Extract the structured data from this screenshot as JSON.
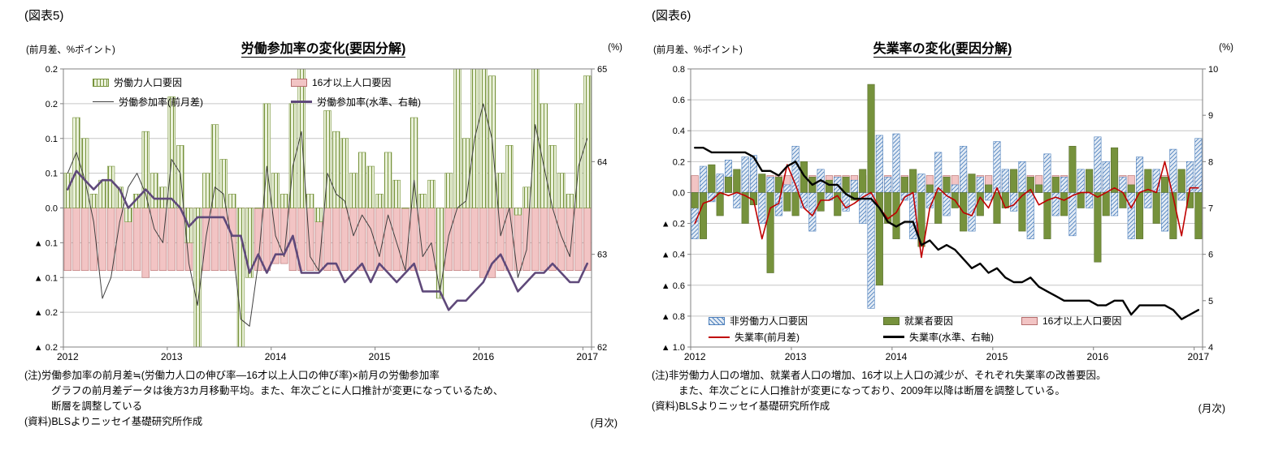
{
  "page": {
    "background": "#ffffff"
  },
  "figures": [
    {
      "fig_label": "(図表5)",
      "title": "労働参加率の変化(要因分解)",
      "unit_left": "(前月差、%ポイント)",
      "unit_right": "(%)",
      "freq_label": "(月次)",
      "legend": [
        {
          "label": "労働力人口要因",
          "swatch": "green-hatch"
        },
        {
          "label": "16才以上人口要因",
          "swatch": "pink"
        },
        {
          "label": "労働参加率(前月差)",
          "swatch": "thin-line"
        },
        {
          "label": "労働参加率(水準、右軸)",
          "swatch": "purple-line"
        }
      ],
      "notes": [
        {
          "text": "(注)労働参加率の前月差≒(労働力人口の伸び率―16才以上人口の伸び率)×前月の労働参加率",
          "indent": false
        },
        {
          "text": "グラフの前月差データは後方3カ月移動平均。また、年次ごとに人口推計が変更になっているため、",
          "indent": true
        },
        {
          "text": "断層を調整している",
          "indent": true
        },
        {
          "text": "(資料)BLSよりニッセイ基礎研究所作成",
          "indent": false
        }
      ]
    },
    {
      "fig_label": "(図表6)",
      "title": "失業率の変化(要因分解)",
      "unit_left": "(前月差、%ポイント)",
      "unit_right": "(%)",
      "freq_label": "(月次)",
      "legend": [
        {
          "label": "非労働力人口要因",
          "swatch": "blue-hatch"
        },
        {
          "label": "就業者要因",
          "swatch": "olive"
        },
        {
          "label": "16才以上人口要因",
          "swatch": "pink"
        },
        {
          "label": "失業率(前月差)",
          "swatch": "red-line"
        },
        {
          "label": "失業率(水準、右軸)",
          "swatch": "black-line"
        }
      ],
      "notes": [
        {
          "text": "(注)非労働力人口の増加、就業者人口の増加、16才以上人口の減少が、それぞれ失業率の改善要因。",
          "indent": false
        },
        {
          "text": "また、年次ごとに人口推計が変更になっており、2009年以降は断層を調整している。",
          "indent": true
        },
        {
          "text": "(資料)BLSよりニッセイ基礎研究所作成",
          "indent": false
        }
      ]
    }
  ],
  "colors": {
    "green_fill": "#eaf1da",
    "green_line": "#77933c",
    "pink_fill": "#f2c4c4",
    "pink_line": "#b56e6e",
    "blue_fill": "#e4ecf5",
    "blue_line": "#4f81bd",
    "olive_fill": "#76923c",
    "olive_dark": "#5a7030",
    "thin_line": "#404040",
    "purple_line": "#5f497a",
    "red_line": "#c00000",
    "black_line": "#000000",
    "grid": "#c6c6c6",
    "axis": "#808080",
    "text": "#000000"
  },
  "chart_data": [
    {
      "type": "bar",
      "subtype": "stacked-bars-with-lines",
      "title": "労働参加率の変化(要因分解)",
      "x_unit": "month",
      "x_start": "2012-01",
      "x_end": "2017-01",
      "x_tick_labels": [
        "2012",
        "2013",
        "2014",
        "2015",
        "2016",
        "2017"
      ],
      "x_tick_month_index": [
        0,
        12,
        24,
        36,
        48,
        60
      ],
      "grid": true,
      "legend_position": "top-left-inside",
      "axis_left": {
        "label": "(前月差、%ポイント)",
        "min": -0.2,
        "max": 0.2,
        "step": 0.05,
        "tick_labels": [
          "0.2",
          "0.2",
          "0.1",
          "0.1",
          "0.0",
          "▲ 0.1",
          "▲ 0.1",
          "▲ 0.2",
          "▲ 0.2"
        ]
      },
      "axis_right": {
        "label": "(%)",
        "min": 62,
        "max": 65,
        "tick_labels": [
          "65",
          "64",
          "63",
          "62"
        ]
      },
      "bar_series": [
        {
          "name": "16才以上人口要因",
          "style": "pink",
          "values": [
            -0.09,
            -0.09,
            -0.09,
            -0.09,
            -0.09,
            -0.09,
            -0.09,
            -0.09,
            -0.09,
            -0.1,
            -0.09,
            -0.09,
            -0.09,
            -0.09,
            -0.09,
            -0.09,
            -0.09,
            -0.09,
            -0.09,
            -0.09,
            -0.09,
            -0.09,
            -0.09,
            -0.09,
            -0.08,
            -0.08,
            -0.09,
            -0.09,
            -0.09,
            -0.09,
            -0.09,
            -0.09,
            -0.09,
            -0.09,
            -0.09,
            -0.09,
            -0.09,
            -0.09,
            -0.09,
            -0.09,
            -0.09,
            -0.09,
            -0.09,
            -0.09,
            -0.09,
            -0.09,
            -0.09,
            -0.09,
            -0.1,
            -0.1,
            -0.09,
            -0.09,
            -0.09,
            -0.09,
            -0.09,
            -0.09,
            -0.09,
            -0.09,
            -0.09,
            -0.09,
            -0.09
          ]
        },
        {
          "name": "労働力人口要因",
          "style": "green-hatch",
          "values": [
            0.05,
            0.13,
            0.1,
            0.02,
            0.04,
            0.06,
            0.03,
            -0.02,
            0.02,
            0.11,
            0.05,
            0.03,
            0.16,
            0.09,
            -0.05,
            -0.2,
            0.05,
            0.12,
            0.07,
            0.02,
            -0.23,
            -0.1,
            0.0,
            0.15,
            0.05,
            0.02,
            0.15,
            0.2,
            0.02,
            -0.02,
            0.14,
            0.11,
            0.1,
            0.05,
            0.08,
            0.06,
            0.02,
            0.08,
            0.04,
            0.0,
            0.13,
            0.02,
            0.04,
            -0.13,
            0.05,
            0.22,
            0.1,
            0.28,
            0.24,
            0.19,
            0.05,
            0.09,
            -0.01,
            0.03,
            0.21,
            0.15,
            0.09,
            0.05,
            0.02,
            0.15,
            0.19
          ]
        }
      ],
      "line_series": [
        {
          "name": "労働参加率(前月差)",
          "style": "thin-line",
          "axis": "left",
          "values": [
            0.05,
            0.08,
            0.04,
            -0.02,
            -0.13,
            -0.1,
            -0.02,
            0.03,
            0.05,
            0.02,
            -0.03,
            -0.05,
            0.07,
            0.05,
            -0.08,
            -0.14,
            -0.04,
            0.03,
            0.02,
            -0.05,
            -0.16,
            -0.17,
            -0.08,
            0.06,
            -0.04,
            -0.07,
            0.06,
            0.11,
            -0.07,
            -0.09,
            0.05,
            0.02,
            0.01,
            -0.04,
            -0.01,
            -0.03,
            -0.07,
            -0.01,
            -0.05,
            -0.09,
            0.04,
            -0.07,
            -0.05,
            -0.12,
            -0.04,
            0.0,
            0.01,
            0.1,
            0.15,
            0.1,
            -0.04,
            0.0,
            -0.1,
            -0.06,
            0.12,
            0.06,
            0.0,
            -0.04,
            -0.07,
            0.06,
            0.1
          ]
        },
        {
          "name": "労働参加率(水準、右軸)",
          "style": "purple-line",
          "axis": "right",
          "values": [
            63.7,
            63.9,
            63.8,
            63.7,
            63.8,
            63.8,
            63.7,
            63.5,
            63.6,
            63.7,
            63.6,
            63.6,
            63.6,
            63.5,
            63.3,
            63.4,
            63.4,
            63.4,
            63.4,
            63.2,
            63.2,
            62.8,
            63.0,
            62.8,
            63.0,
            63.0,
            63.2,
            62.8,
            62.8,
            62.8,
            62.9,
            62.9,
            62.7,
            62.8,
            62.9,
            62.7,
            62.9,
            62.8,
            62.7,
            62.8,
            62.9,
            62.6,
            62.6,
            62.6,
            62.4,
            62.5,
            62.5,
            62.6,
            62.7,
            62.9,
            63.0,
            62.8,
            62.6,
            62.7,
            62.8,
            62.8,
            62.9,
            62.8,
            62.7,
            62.7,
            62.9
          ]
        }
      ]
    },
    {
      "type": "bar",
      "subtype": "stacked-bars-with-lines",
      "title": "失業率の変化(要因分解)",
      "x_unit": "month",
      "x_start": "2012-01",
      "x_end": "2017-01",
      "x_tick_labels": [
        "2012",
        "2013",
        "2014",
        "2015",
        "2016",
        "2017"
      ],
      "x_tick_month_index": [
        0,
        12,
        24,
        36,
        48,
        60
      ],
      "grid": true,
      "legend_position": "bottom-inside",
      "axis_left": {
        "label": "(前月差、%ポイント)",
        "min": -1.0,
        "max": 0.8,
        "step": 0.2,
        "tick_labels": [
          "0.8",
          "0.6",
          "0.4",
          "0.2",
          "0.0",
          "▲ 0.2",
          "▲ 0.4",
          "▲ 0.6",
          "▲ 0.8",
          "▲ 1.0"
        ]
      },
      "axis_right": {
        "label": "(%)",
        "min": 4,
        "max": 10,
        "tick_labels": [
          "10",
          "9",
          "8",
          "7",
          "6",
          "5",
          "4"
        ]
      },
      "bar_series": [
        {
          "name": "16才以上人口要因",
          "style": "pink",
          "values": [
            0.11,
            0.11,
            0.11,
            0.11,
            0.11,
            0.11,
            0.11,
            0.11,
            0.11,
            0.11,
            0.11,
            0.11,
            0.11,
            0.11,
            0.11,
            0.11,
            0.11,
            0.11,
            0.11,
            0.11,
            0.11,
            0.11,
            0.11,
            0.11,
            0.11,
            0.11,
            0.11,
            0.11,
            0.11,
            0.11,
            0.11,
            0.11,
            0.11,
            0.11,
            0.11,
            0.11,
            0.11,
            0.11,
            0.11,
            0.11,
            0.11,
            0.11,
            0.11,
            0.11,
            0.11,
            0.11,
            0.11,
            0.11,
            0.11,
            0.11,
            0.11,
            0.11,
            0.11,
            0.11,
            0.11,
            0.11,
            0.11,
            0.11,
            0.11,
            0.11,
            0.11
          ]
        },
        {
          "name": "非労働力人口要因",
          "style": "blue-hatch",
          "values": [
            -0.3,
            0.17,
            -0.06,
            0.12,
            0.21,
            -0.1,
            0.23,
            0.24,
            -0.2,
            0.1,
            -0.15,
            0.05,
            0.3,
            -0.1,
            -0.25,
            0.15,
            -0.05,
            0.1,
            -0.12,
            0.08,
            -0.2,
            -0.75,
            0.37,
            0.1,
            0.38,
            -0.05,
            -0.3,
            0.12,
            -0.1,
            0.26,
            -0.15,
            0.05,
            0.3,
            -0.25,
            0.1,
            -0.05,
            0.33,
            0.15,
            -0.12,
            0.2,
            -0.3,
            0.05,
            0.25,
            -0.15,
            0.1,
            -0.28,
            0.15,
            -0.1,
            0.36,
            0.2,
            -0.15,
            0.1,
            -0.3,
            0.23,
            -0.1,
            0.15,
            -0.25,
            0.28,
            -0.05,
            0.2,
            0.35
          ]
        },
        {
          "name": "就業者要因",
          "style": "olive",
          "values": [
            -0.1,
            -0.3,
            0.18,
            -0.15,
            0.1,
            0.15,
            -0.2,
            -0.08,
            0.12,
            -0.52,
            0.1,
            -0.12,
            -0.15,
            0.2,
            0.1,
            -0.12,
            0.08,
            -0.15,
            0.1,
            -0.05,
            0.15,
            0.7,
            -0.6,
            -0.2,
            -0.3,
            0.1,
            0.15,
            -0.35,
            0.05,
            -0.2,
            0.1,
            -0.1,
            -0.25,
            0.12,
            -0.15,
            0.05,
            -0.2,
            -0.1,
            0.15,
            -0.25,
            0.1,
            0.05,
            -0.3,
            0.1,
            -0.15,
            0.3,
            -0.1,
            0.15,
            -0.45,
            -0.15,
            0.29,
            -0.1,
            0.05,
            -0.3,
            0.15,
            -0.2,
            0.1,
            -0.3,
            0.15,
            -0.1,
            -0.3
          ]
        }
      ],
      "line_series": [
        {
          "name": "失業率(前月差)",
          "style": "red-line",
          "axis": "left",
          "values": [
            -0.2,
            -0.07,
            -0.05,
            0.0,
            -0.02,
            0.0,
            -0.02,
            -0.05,
            -0.3,
            -0.1,
            -0.07,
            0.18,
            0.05,
            -0.1,
            -0.15,
            -0.05,
            -0.05,
            -0.02,
            -0.1,
            -0.07,
            -0.03,
            0.0,
            -0.1,
            -0.17,
            -0.13,
            -0.03,
            0.0,
            -0.42,
            -0.1,
            0.03,
            -0.02,
            -0.05,
            -0.13,
            -0.15,
            -0.03,
            -0.1,
            0.03,
            -0.1,
            -0.08,
            -0.02,
            0.02,
            -0.08,
            -0.05,
            -0.03,
            -0.05,
            -0.02,
            0.0,
            0.0,
            -0.03,
            0.0,
            0.03,
            0.0,
            -0.1,
            0.0,
            0.02,
            0.0,
            0.2,
            -0.03,
            -0.28,
            0.03,
            0.03
          ]
        },
        {
          "name": "失業率(水準、右軸)",
          "style": "black-line",
          "axis": "right",
          "values": [
            8.3,
            8.3,
            8.2,
            8.2,
            8.2,
            8.2,
            8.2,
            8.1,
            7.8,
            7.8,
            7.7,
            7.9,
            8.0,
            7.7,
            7.5,
            7.6,
            7.5,
            7.5,
            7.3,
            7.2,
            7.2,
            7.2,
            7.0,
            6.7,
            6.6,
            6.7,
            6.7,
            6.2,
            6.3,
            6.1,
            6.2,
            6.1,
            5.9,
            5.7,
            5.8,
            5.6,
            5.7,
            5.5,
            5.4,
            5.4,
            5.5,
            5.3,
            5.2,
            5.1,
            5.0,
            5.0,
            5.0,
            5.0,
            4.9,
            4.9,
            5.0,
            5.0,
            4.7,
            4.9,
            4.9,
            4.9,
            4.9,
            4.8,
            4.6,
            4.7,
            4.8
          ]
        }
      ]
    }
  ]
}
